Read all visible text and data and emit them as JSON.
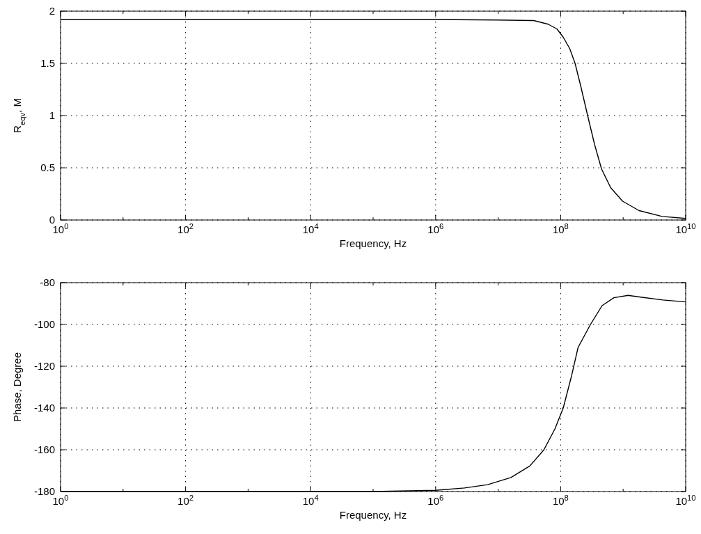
{
  "chart_data": [
    {
      "type": "line",
      "xlabel": "Frequency, Hz",
      "ylabel": "R$_{eqv}$, M",
      "log": "x",
      "grid": true,
      "marker": "none",
      "line_style": "solid",
      "xlim": [
        1,
        10000000000
      ],
      "xticks": [
        {
          "value": 1,
          "label": "10$^{0}$"
        },
        {
          "value": 10,
          "label": null
        },
        {
          "value": 100,
          "label": "10$^{2}$"
        },
        {
          "value": 1000,
          "label": null
        },
        {
          "value": 10000,
          "label": "10$^{4}$"
        },
        {
          "value": 100000,
          "label": null
        },
        {
          "value": 1000000,
          "label": "10$^{6}$"
        },
        {
          "value": 10000000,
          "label": null
        },
        {
          "value": 100000000,
          "label": "10$^{8}$"
        },
        {
          "value": 1000000000,
          "label": null
        },
        {
          "value": 10000000000,
          "label": "10$^{10}$"
        }
      ],
      "ylim": [
        0,
        2
      ],
      "yticks": [
        0,
        0.5,
        1,
        1.5,
        2
      ],
      "series": [
        {
          "color": "#000000",
          "x": [
            1,
            1000000,
            10000000,
            37000000,
            63000000,
            87000000,
            110000000,
            140000000,
            170000000,
            210000000,
            270000000,
            350000000,
            450000000,
            630000000,
            980000000,
            1800000000,
            4200000000,
            10000000000
          ],
          "values": [
            1.92,
            1.92,
            1.915,
            1.91,
            1.875,
            1.83,
            1.75,
            1.64,
            1.5,
            1.28,
            1.0,
            0.72,
            0.49,
            0.31,
            0.18,
            0.09,
            0.034,
            0.015
          ]
        }
      ]
    },
    {
      "type": "line",
      "xlabel": "Frequency, Hz",
      "ylabel": "Phase, Degree",
      "log": "x",
      "grid": true,
      "marker": "none",
      "line_style": "solid",
      "xlim": [
        1,
        10000000000
      ],
      "xticks": [
        {
          "value": 1,
          "label": "10$^{0}$"
        },
        {
          "value": 10,
          "label": null
        },
        {
          "value": 100,
          "label": "10$^{2}$"
        },
        {
          "value": 1000,
          "label": null
        },
        {
          "value": 10000,
          "label": "10$^{4}$"
        },
        {
          "value": 100000,
          "label": null
        },
        {
          "value": 1000000,
          "label": "10$^{6}$"
        },
        {
          "value": 10000000,
          "label": null
        },
        {
          "value": 100000000,
          "label": "10$^{8}$"
        },
        {
          "value": 1000000000,
          "label": null
        },
        {
          "value": 10000000000,
          "label": "10$^{10}$"
        }
      ],
      "ylim": [
        -180,
        -80
      ],
      "yticks": [
        -180,
        -160,
        -140,
        -120,
        -100,
        -80
      ],
      "series": [
        {
          "color": "#000000",
          "x": [
            1,
            100000,
            1000000,
            2900000,
            6800000,
            16000000,
            32000000,
            54000000,
            81000000,
            110000000,
            150000000,
            190000000,
            300000000,
            460000000,
            710000000,
            1200000000,
            1900000000,
            4300000000,
            10000000000
          ],
          "values": [
            -180,
            -180,
            -179.4,
            -178.3,
            -176.7,
            -173.3,
            -167.8,
            -160,
            -150,
            -140,
            -124.4,
            -111,
            -100,
            -91,
            -87.2,
            -86.1,
            -86.9,
            -88.3,
            -89.2
          ]
        }
      ]
    }
  ]
}
